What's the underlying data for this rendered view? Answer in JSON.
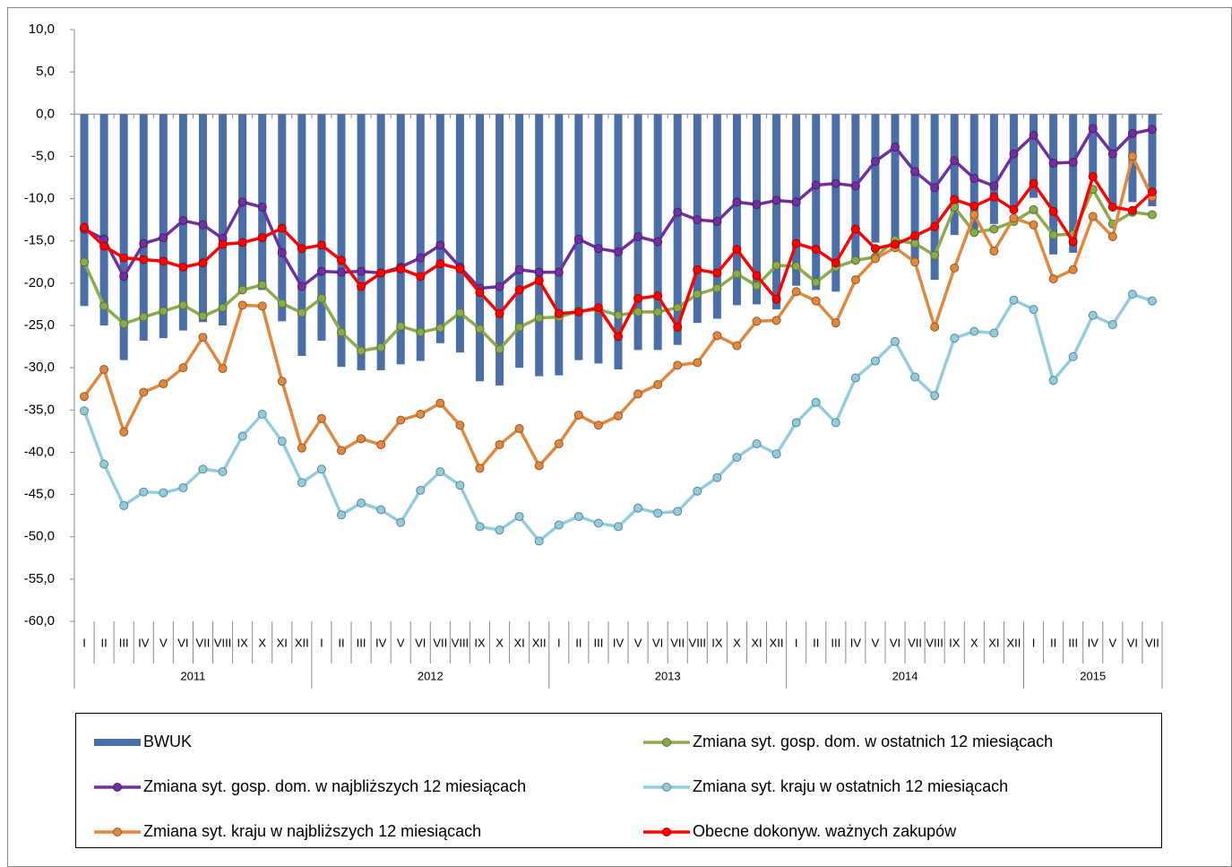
{
  "chart_data": {
    "type": "combo",
    "categories": [
      "I",
      "II",
      "III",
      "IV",
      "V",
      "VI",
      "VII",
      "VIII",
      "IX",
      "X",
      "XI",
      "XII",
      "I",
      "II",
      "III",
      "IV",
      "V",
      "VI",
      "VII",
      "VIII",
      "IX",
      "X",
      "XI",
      "XII",
      "I",
      "II",
      "III",
      "IV",
      "V",
      "VI",
      "VII",
      "VIII",
      "IX",
      "X",
      "XI",
      "XII",
      "I",
      "II",
      "III",
      "IV",
      "V",
      "VI",
      "VII",
      "VIII",
      "IX",
      "X",
      "XI",
      "XII",
      "I",
      "II",
      "III",
      "IV",
      "V",
      "VI",
      "VII"
    ],
    "year_labels": [
      "2011",
      "2012",
      "2013",
      "2014",
      "2015"
    ],
    "ylim": [
      -60,
      10
    ],
    "yticks": [
      {
        "value": 10,
        "label": "10,0"
      },
      {
        "value": 5,
        "label": "5,0"
      },
      {
        "value": 0,
        "label": "0,0"
      },
      {
        "value": -5,
        "label": "-5,0"
      },
      {
        "value": -10,
        "label": "-10,0"
      },
      {
        "value": -15,
        "label": "-15,0"
      },
      {
        "value": -20,
        "label": "-20,0"
      },
      {
        "value": -25,
        "label": "-25,0"
      },
      {
        "value": -30,
        "label": "-30,0"
      },
      {
        "value": -35,
        "label": "-35,0"
      },
      {
        "value": -40,
        "label": "-40,0"
      },
      {
        "value": -45,
        "label": "-45,0"
      },
      {
        "value": -50,
        "label": "-50,0"
      },
      {
        "value": -55,
        "label": "-55,0"
      },
      {
        "value": -60,
        "label": "-60,0"
      }
    ],
    "series": [
      {
        "name": "BWUK",
        "type": "bar",
        "color": "#4a6fa8",
        "values": [
          -22.7,
          -25.0,
          -29.1,
          -26.8,
          -26.5,
          -25.6,
          -24.6,
          -25.0,
          -20.8,
          -20.8,
          -24.5,
          -28.6,
          -26.8,
          -29.9,
          -30.3,
          -30.3,
          -29.6,
          -29.2,
          -27.1,
          -28.2,
          -31.6,
          -32.1,
          -30.0,
          -31.0,
          -30.9,
          -29.1,
          -29.5,
          -30.2,
          -27.9,
          -27.9,
          -27.3,
          -24.7,
          -24.2,
          -22.6,
          -22.5,
          -23.1,
          -20.3,
          -20.8,
          -21.0,
          -17.0,
          -15.2,
          -15.7,
          -17.5,
          -19.6,
          -14.3,
          -13.6,
          -13.0,
          -10.9,
          -9.9,
          -16.6,
          -16.4,
          -7.7,
          -10.7,
          -10.4,
          -10.9
        ]
      },
      {
        "name": "Zmiana syt. gosp. dom. w ostatnich 12 miesiącach",
        "type": "line",
        "color": "#8aaa4b",
        "values": [
          -17.5,
          -22.7,
          -24.8,
          -24.0,
          -23.3,
          -22.6,
          -23.9,
          -22.9,
          -20.8,
          -20.2,
          -22.4,
          -23.5,
          -21.8,
          -25.8,
          -28.0,
          -27.6,
          -25.1,
          -25.8,
          -25.3,
          -23.5,
          -25.4,
          -27.8,
          -25.2,
          -24.1,
          -24.0,
          -23.3,
          -23.1,
          -23.8,
          -23.4,
          -23.4,
          -22.9,
          -21.3,
          -20.6,
          -18.9,
          -20.3,
          -17.9,
          -18.0,
          -19.9,
          -18.1,
          -17.3,
          -16.9,
          -14.9,
          -15.3,
          -16.7,
          -11.0,
          -14.0,
          -13.6,
          -12.7,
          -11.3,
          -14.3,
          -14.2,
          -8.9,
          -13.0,
          -11.6,
          -11.9
        ]
      },
      {
        "name": "Zmiana syt. gosp. dom. w najbliższych 12 miesiącach",
        "type": "line",
        "color": "#7030a0",
        "values": [
          -13.6,
          -14.8,
          -19.2,
          -15.3,
          -14.6,
          -12.6,
          -13.1,
          -14.7,
          -10.4,
          -11.0,
          -16.4,
          -20.4,
          -18.6,
          -18.7,
          -18.6,
          -18.8,
          -18.1,
          -17.0,
          -15.5,
          -18.1,
          -20.6,
          -20.4,
          -18.4,
          -18.7,
          -18.7,
          -14.8,
          -15.9,
          -16.3,
          -14.5,
          -15.1,
          -11.6,
          -12.5,
          -12.7,
          -10.4,
          -10.7,
          -10.2,
          -10.4,
          -8.4,
          -8.2,
          -8.5,
          -5.6,
          -3.9,
          -6.8,
          -8.7,
          -5.5,
          -7.6,
          -8.5,
          -4.7,
          -2.5,
          -5.8,
          -5.7,
          -1.7,
          -4.7,
          -2.3,
          -1.8
        ]
      },
      {
        "name": "Zmiana syt. kraju w ostatnich 12 miesiącach",
        "type": "line",
        "color": "#92cddd",
        "values": [
          -35.1,
          -41.4,
          -46.3,
          -44.7,
          -44.8,
          -44.2,
          -42.0,
          -42.3,
          -38.1,
          -35.5,
          -38.7,
          -43.6,
          -42.0,
          -47.4,
          -46.0,
          -46.8,
          -48.3,
          -44.5,
          -42.3,
          -43.9,
          -48.8,
          -49.2,
          -47.6,
          -50.5,
          -48.6,
          -47.6,
          -48.4,
          -48.8,
          -46.6,
          -47.2,
          -47.0,
          -44.6,
          -43.0,
          -40.6,
          -39.0,
          -40.2,
          -36.5,
          -34.1,
          -36.5,
          -31.2,
          -29.2,
          -26.9,
          -31.1,
          -33.3,
          -26.5,
          -25.7,
          -25.9,
          -22.0,
          -23.1,
          -31.5,
          -28.7,
          -23.8,
          -24.9,
          -21.3,
          -22.1
        ]
      },
      {
        "name": "Zmiana syt. kraju w najbliższych 12 miesiącach",
        "type": "line",
        "color": "#e0883e",
        "values": [
          -33.4,
          -30.2,
          -37.6,
          -32.9,
          -31.9,
          -30.0,
          -26.4,
          -30.1,
          -22.6,
          -22.7,
          -31.6,
          -39.5,
          -36.0,
          -39.8,
          -38.4,
          -39.1,
          -36.2,
          -35.5,
          -34.2,
          -36.8,
          -41.9,
          -39.1,
          -37.2,
          -41.6,
          -39.0,
          -35.6,
          -36.8,
          -35.7,
          -33.1,
          -32.0,
          -29.7,
          -29.4,
          -26.2,
          -27.4,
          -24.5,
          -24.4,
          -21.0,
          -22.1,
          -24.7,
          -19.6,
          -17.1,
          -15.8,
          -17.5,
          -25.2,
          -18.2,
          -11.9,
          -16.2,
          -12.3,
          -13.1,
          -19.5,
          -18.4,
          -12.1,
          -14.5,
          -5.0,
          -9.8
        ]
      },
      {
        "name": "Obecne dokonyw. ważnych zakupów",
        "type": "line",
        "color": "#ff0000",
        "values": [
          -13.4,
          -15.6,
          -17.0,
          -17.2,
          -17.4,
          -18.1,
          -17.6,
          -15.4,
          -15.2,
          -14.6,
          -13.5,
          -15.9,
          -15.5,
          -17.3,
          -20.4,
          -18.8,
          -18.3,
          -19.2,
          -17.7,
          -18.3,
          -21.1,
          -23.6,
          -20.8,
          -19.7,
          -23.6,
          -23.4,
          -22.9,
          -26.3,
          -21.8,
          -21.5,
          -25.2,
          -18.4,
          -18.8,
          -16.0,
          -19.1,
          -21.9,
          -15.3,
          -16.0,
          -17.6,
          -13.6,
          -15.9,
          -15.4,
          -14.4,
          -13.3,
          -10.1,
          -10.9,
          -9.8,
          -11.3,
          -8.2,
          -11.5,
          -15.1,
          -7.4,
          -11.0,
          -11.4,
          -9.2
        ]
      }
    ]
  }
}
